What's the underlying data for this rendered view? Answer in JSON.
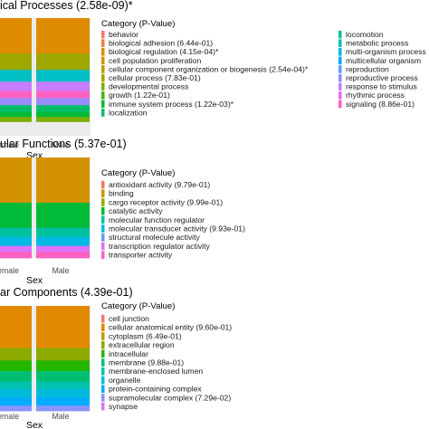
{
  "colors": {
    "behavior": "#f8766d",
    "biological adhesion": "#ed813e",
    "biological regulation": "#de8c00",
    "cell population proliferation": "#cd9600",
    "cellular component organization or biogenesis": "#b79f00",
    "cellular process": "#9da700",
    "developmental process": "#7cae00",
    "growth": "#49b500",
    "immune system process": "#00ba38",
    "localization": "#00be67",
    "locomotion": "#00c19a",
    "metabolic process": "#00bfc4",
    "multi-organism process": "#00b9e3",
    "multicellular organism": "#00a9ff",
    "reproduction": "#619cff",
    "reproductive process": "#9a8bff",
    "response to stimulus": "#c77cff",
    "rhythmic process": "#e76bf3",
    "signaling": "#ff61c3",
    "mf": [
      "#f8766d",
      "#d39200",
      "#93aa00",
      "#00ba38",
      "#00c19f",
      "#00b9e3",
      "#619cff",
      "#db72fb",
      "#ff61c3"
    ],
    "cc": [
      "#f8766d",
      "#e18a00",
      "#be9c00",
      "#8cab00",
      "#24b700",
      "#00be70",
      "#00c1ab",
      "#00bbda",
      "#00acfc",
      "#8b93ff",
      "#d575fe",
      "#f962dd"
    ]
  },
  "chart_data": [
    {
      "type": "bar",
      "title": "ical Processes (2.58e-09)*",
      "xlabel": "Sex",
      "x_tick_labels": [
        "emale",
        "Male"
      ],
      "legend_title": "Category (P-Value)",
      "stacked_fill_proportions": {
        "order_top_to_bottom": [
          "biological regulation",
          "cellular process",
          "metabolic process",
          "response to stimulus",
          "signaling",
          "reproductive process",
          "localization",
          "immune system process",
          "developmental process"
        ],
        "bars": [
          {
            "name": "emale",
            "values": [
              0.3,
              0.14,
              0.1,
              0.08,
              0.06,
              0.06,
              0.06,
              0.04,
              0.04
            ]
          },
          {
            "name": "Male",
            "values": [
              0.3,
              0.14,
              0.1,
              0.08,
              0.06,
              0.06,
              0.06,
              0.04,
              0.04
            ]
          }
        ]
      },
      "legend": [
        "behavior",
        "biological adhesion (6.44e-01)",
        "biological regulation (4.15e-04)*",
        "cell population proliferation",
        "cellular component organization or biogenesis (2.54e-04)*",
        "cellular process (7.83e-01)",
        "developmental process",
        "growth (1.22e-01)",
        "immune system process (1.22e-03)*",
        "localization",
        "locomotion",
        "metabolic process",
        "multi-organism process",
        "multicellular organism",
        "reproduction",
        "reproductive process",
        "response to stimulus",
        "rhythmic process",
        "signaling (8.86e-01)"
      ]
    },
    {
      "type": "bar",
      "title": "ular Functions (5.37e-01)",
      "xlabel": "Sex",
      "x_tick_labels": [
        "emale",
        "Male"
      ],
      "legend_title": "Category (P-Value)",
      "stacked_fill_proportions": {
        "order_top_to_bottom": [
          "binding",
          "catalytic activity",
          "molecular function regulator",
          "molecular transducer activity",
          "transcription regulator activity",
          "transporter activity"
        ],
        "bars": [
          {
            "name": "emale",
            "values": [
              0.45,
              0.25,
              0.09,
              0.09,
              0.06,
              0.06
            ]
          },
          {
            "name": "Male",
            "values": [
              0.45,
              0.25,
              0.09,
              0.09,
              0.06,
              0.06
            ]
          }
        ]
      },
      "legend": [
        "antioxidant activity (9.79e-01)",
        "binding",
        "cargo receptor activity (9.99e-01)",
        "catalytic activity",
        "molecular function regulator",
        "molecular transducer activity (9.93e-01)",
        "structural molecule activity",
        "transcription regulator activity",
        "transporter activity"
      ]
    },
    {
      "type": "bar",
      "title": "ar Components (4.39e-01)",
      "xlabel": "Sex",
      "x_tick_labels": [
        "emale",
        "Male"
      ],
      "legend_title": "Category (P-Value)",
      "stacked_fill_proportions": {
        "order_top_to_bottom": [
          "cellular anatomical entity",
          "extracellular region",
          "intracellular",
          "membrane",
          "membrane-enclosed lumen",
          "organelle",
          "protein-containing complex",
          "supramolecular complex"
        ],
        "bars": [
          {
            "name": "emale",
            "values": [
              0.4,
              0.12,
              0.1,
              0.1,
              0.07,
              0.08,
              0.08,
              0.05
            ]
          },
          {
            "name": "Male",
            "values": [
              0.4,
              0.12,
              0.1,
              0.1,
              0.07,
              0.08,
              0.08,
              0.05
            ]
          }
        ]
      },
      "legend": [
        "cell junction",
        "cellular anatomical entity (9.60e-01)",
        "cytoplasm (6.49e-01)",
        "extracellular region",
        "intracellular",
        "membrane (9.88e-01)",
        "membrane-enclosed lumen",
        "organelle",
        "protein-containing complex",
        "supramolecular complex (7.29e-02)",
        "synapse"
      ]
    }
  ]
}
